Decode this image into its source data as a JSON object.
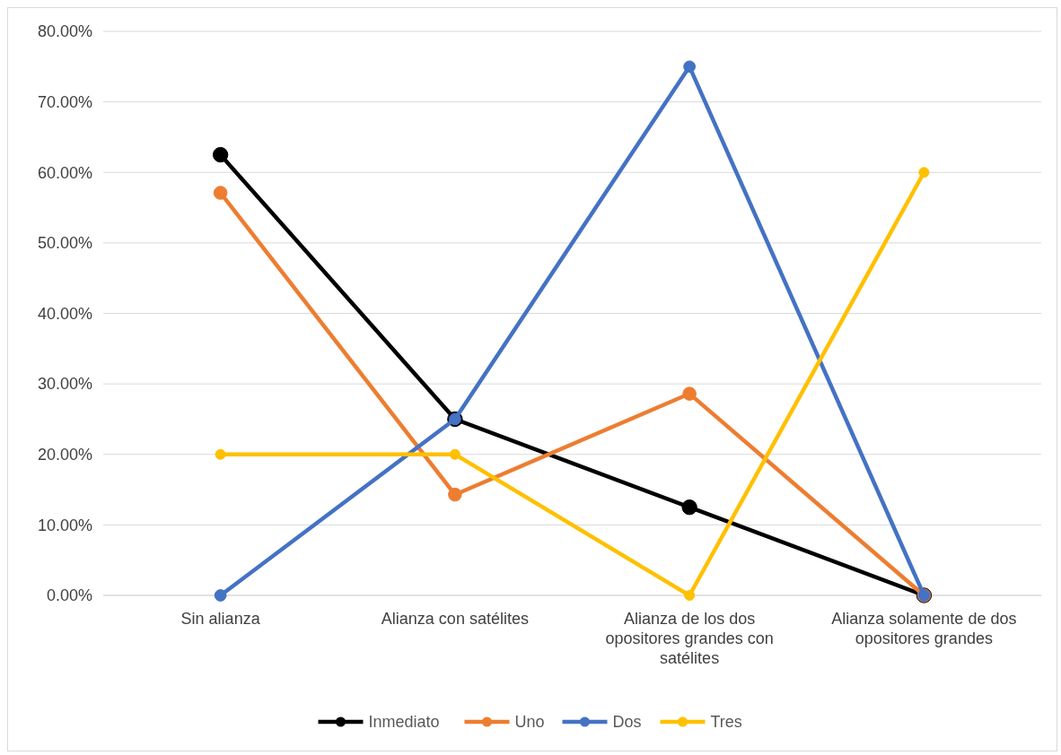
{
  "chart_data": {
    "type": "line",
    "categories": [
      "Sin alianza",
      "Alianza con satélites",
      "Alianza de los dos opositores grandes con satélites",
      "Alianza solamente de dos opositores grandes"
    ],
    "series": [
      {
        "name": "Inmediato",
        "color": "#000000",
        "values": [
          62.5,
          25,
          12.5,
          0
        ]
      },
      {
        "name": "Uno",
        "color": "#ed7d31",
        "values": [
          57.1,
          14.3,
          28.6,
          0
        ]
      },
      {
        "name": "Dos",
        "color": "#4472c4",
        "values": [
          0,
          25,
          75,
          0
        ]
      },
      {
        "name": "Tres",
        "color": "#ffc000",
        "values": [
          20,
          20,
          0,
          60
        ]
      }
    ],
    "ylim": [
      0,
      80
    ],
    "yticks": [
      {
        "value": 0,
        "label": "0.00%"
      },
      {
        "value": 10,
        "label": "10.00%"
      },
      {
        "value": 20,
        "label": "20.00%"
      },
      {
        "value": 30,
        "label": "30.00%"
      },
      {
        "value": 40,
        "label": "40.00%"
      },
      {
        "value": 50,
        "label": "50.00%"
      },
      {
        "value": 60,
        "label": "60.00%"
      },
      {
        "value": 70,
        "label": "70.00%"
      },
      {
        "value": 80,
        "label": "80.00%"
      }
    ],
    "grid": "y",
    "legend": "bottom",
    "marker": "circle",
    "line_style": "solid"
  }
}
